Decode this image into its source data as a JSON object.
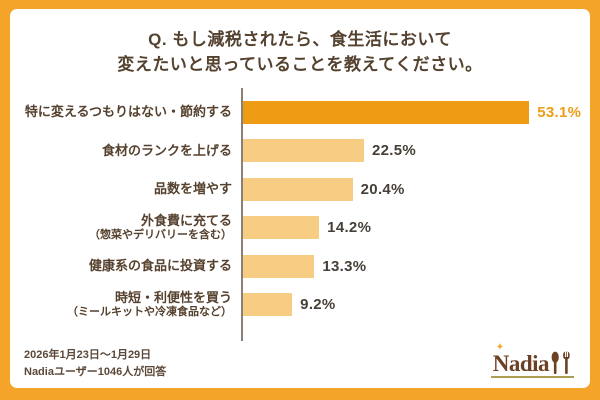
{
  "title": {
    "line1": "Q. もし減税されたら、食生活において",
    "line2": "変えたいと思っていることを教えてください。"
  },
  "chart_data": {
    "type": "bar",
    "orientation": "horizontal",
    "title": "Q. もし減税されたら、食生活において変えたいと思っていることを教えてください。",
    "categories": [
      "特に変えるつもりはない・節約する",
      "食材のランクを上げる",
      "品数を増やす",
      "外食費に充てる（惣菜やデリバリーを含む）",
      "健康系の食品に投資する",
      "時短・利便性を買う（ミールキットや冷凍食品など）"
    ],
    "values": [
      53.1,
      22.5,
      20.4,
      14.2,
      13.3,
      9.2
    ],
    "unit": "%",
    "xlim": [
      0,
      60
    ],
    "grid": false,
    "legend": false,
    "highlight_index": 0
  },
  "bars": [
    {
      "label": "特に変えるつもりはない・節約する",
      "display": "53.1%"
    },
    {
      "label": "食材のランクを上げる",
      "display": "22.5%"
    },
    {
      "label": "品数を増やす",
      "display": "20.4%"
    },
    {
      "label": "外食費に充てる",
      "sub": "（惣菜やデリバリーを含む）",
      "display": "14.2%"
    },
    {
      "label": "健康系の食品に投資する",
      "display": "13.3%"
    },
    {
      "label": "時短・利便性を買う",
      "sub": "（ミールキットや冷凍食品など）",
      "display": "9.2%"
    }
  ],
  "footer": {
    "line1": "2026年1月23日～1月29日",
    "line2": "Nadiaユーザー1046人が回答",
    "logo_text": "Nadia",
    "logo_star": "✦"
  },
  "colors": {
    "frame": "#F4A428",
    "bar_highlight": "#EF9C15",
    "bar_normal": "#F7CD84",
    "value_highlight": "#EF9C15",
    "value_normal": "#474038",
    "text": "#55412E",
    "logo_brown": "#6B4226"
  }
}
